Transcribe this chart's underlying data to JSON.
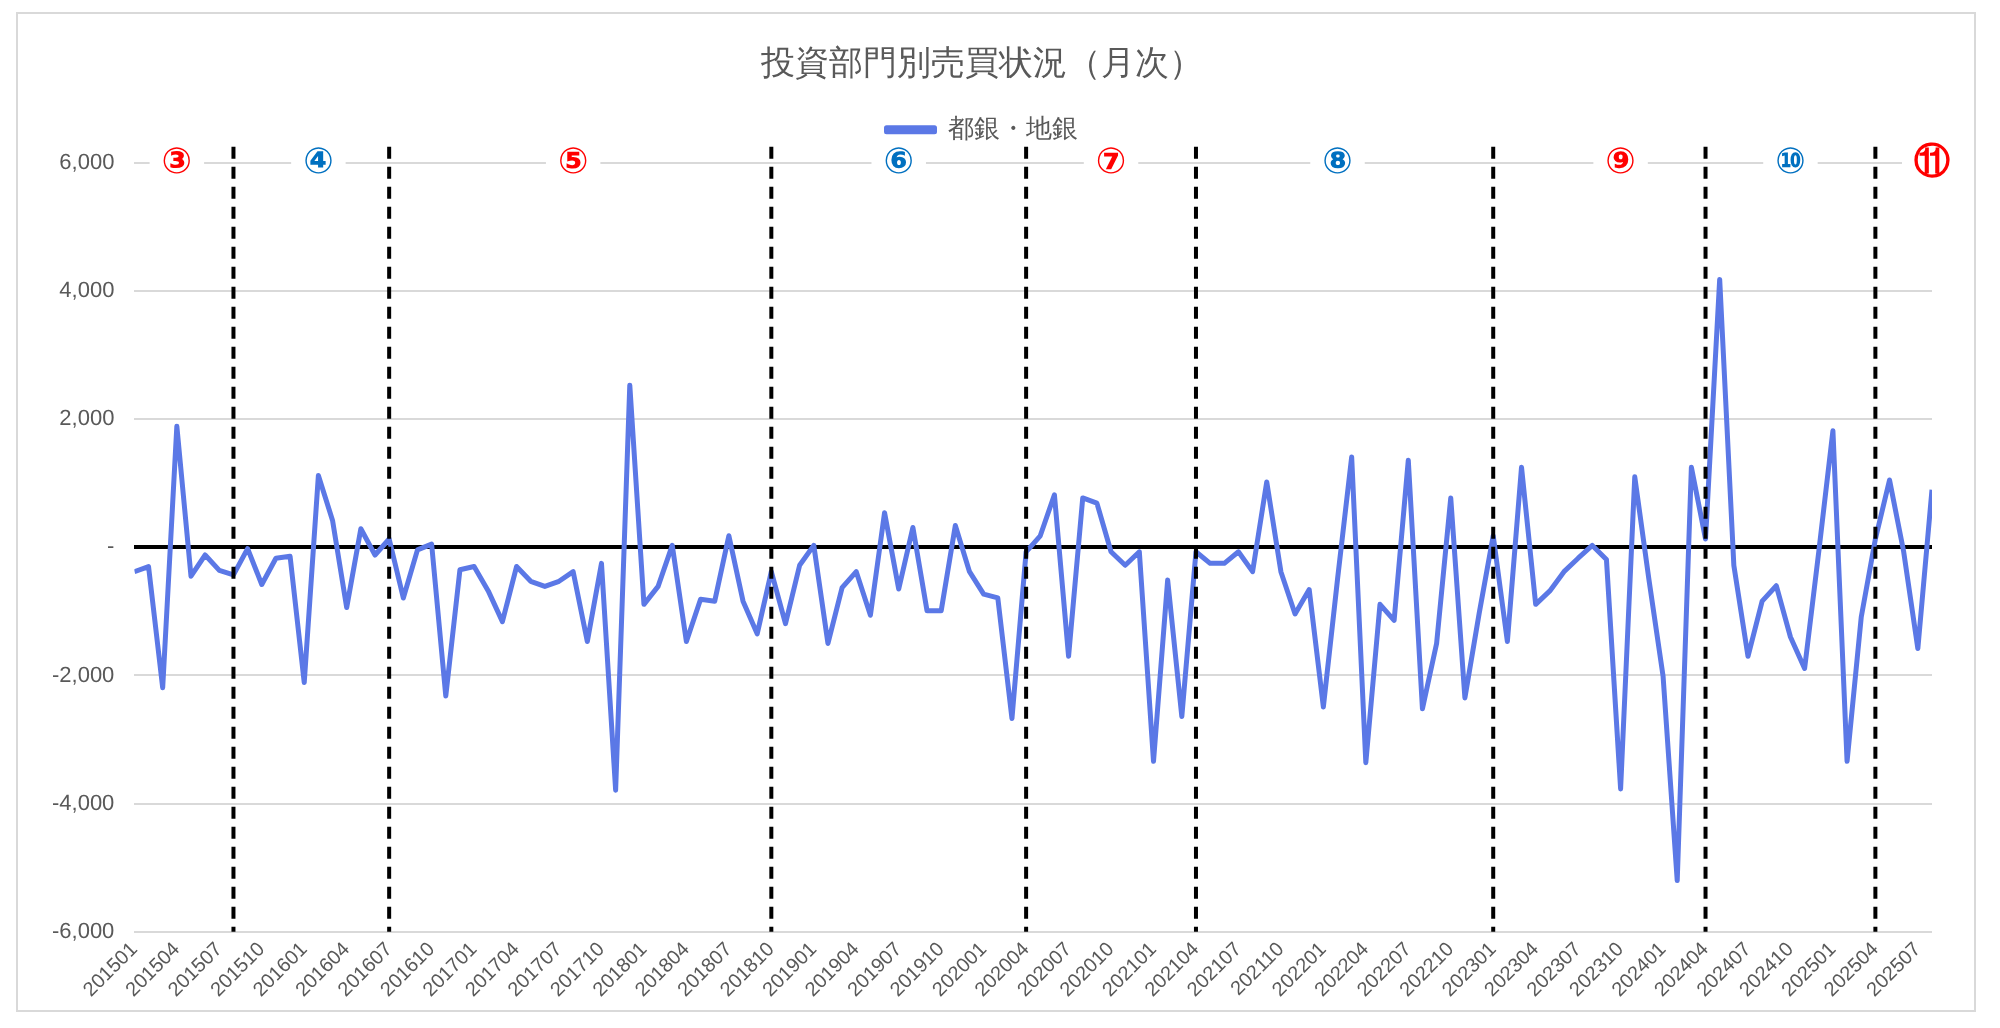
{
  "chart_data": {
    "type": "line",
    "title": "投資部門別売買状況（月次）",
    "legend": "top",
    "grid": "y",
    "line_style": "solid",
    "marker": "none",
    "x": [
      "2015-01",
      "2015-02",
      "2015-03",
      "2015-04",
      "2015-05",
      "2015-06",
      "2015-07",
      "2015-08",
      "2015-09",
      "2015-10",
      "2015-11",
      "2015-12",
      "2016-01",
      "2016-02",
      "2016-03",
      "2016-04",
      "2016-05",
      "2016-06",
      "2016-07",
      "2016-08",
      "2016-09",
      "2016-10",
      "2016-11",
      "2016-12",
      "2017-01",
      "2017-02",
      "2017-03",
      "2017-04",
      "2017-05",
      "2017-06",
      "2017-07",
      "2017-08",
      "2017-09",
      "2017-10",
      "2017-11",
      "2017-12",
      "2018-01",
      "2018-02",
      "2018-03",
      "2018-04",
      "2018-05",
      "2018-06",
      "2018-07",
      "2018-08",
      "2018-09",
      "2018-10",
      "2018-11",
      "2018-12",
      "2019-01",
      "2019-02",
      "2019-03",
      "2019-04",
      "2019-05",
      "2019-06",
      "2019-07",
      "2019-08",
      "2019-09",
      "2019-10",
      "2019-11",
      "2019-12",
      "2020-01",
      "2020-02",
      "2020-03",
      "2020-04",
      "2020-05",
      "2020-06",
      "2020-07",
      "2020-08",
      "2020-09",
      "2020-10",
      "2020-11",
      "2020-12",
      "2021-01",
      "2021-02",
      "2021-03",
      "2021-04",
      "2021-05",
      "2021-06",
      "2021-07",
      "2021-08",
      "2021-09",
      "2021-10",
      "2021-11",
      "2021-12",
      "2022-01",
      "2022-02",
      "2022-03",
      "2022-04",
      "2022-05",
      "2022-06",
      "2022-07",
      "2022-08",
      "2022-09",
      "2022-10",
      "2022-11",
      "2022-12",
      "2023-01",
      "2023-02",
      "2023-03",
      "2023-04",
      "2023-05",
      "2023-06",
      "2023-07",
      "2023-08",
      "2023-09",
      "2023-10",
      "2023-11",
      "2023-12",
      "2024-01",
      "2024-02",
      "2024-03",
      "2024-04",
      "2024-05",
      "2024-06",
      "2024-07",
      "2024-08",
      "2024-09",
      "2024-10",
      "2024-11",
      "2024-12",
      "2025-01",
      "2025-02",
      "2025-03",
      "2025-04",
      "2025-05",
      "2025-06",
      "2025-07",
      "2025-08"
    ],
    "series": [
      {
        "name": "都銀・地銀",
        "color": "#5b78e6",
        "values": [
          -380,
          -300,
          -2190,
          1890,
          -450,
          -120,
          -360,
          -430,
          -20,
          -580,
          -170,
          -140,
          -2110,
          1120,
          420,
          -940,
          290,
          -120,
          130,
          -790,
          -40,
          50,
          -2320,
          -350,
          -300,
          -680,
          -1160,
          -300,
          -530,
          -610,
          -530,
          -380,
          -1470,
          -250,
          -3790,
          2530,
          -890,
          -610,
          30,
          -1470,
          -810,
          -840,
          180,
          -840,
          -1350,
          -380,
          -1190,
          -280,
          30,
          -1500,
          -630,
          -380,
          -1060,
          540,
          -650,
          310,
          -990,
          -990,
          340,
          -380,
          -730,
          -790,
          -2670,
          -70,
          180,
          820,
          -1700,
          770,
          690,
          -70,
          -280,
          -70,
          -3340,
          -510,
          -2640,
          -70,
          -250,
          -250,
          -70,
          -380,
          1020,
          -380,
          -1040,
          -660,
          -2490,
          -500,
          1410,
          -3360,
          -890,
          -1140,
          1360,
          -2520,
          -1500,
          770,
          -2350,
          -1040,
          180,
          -1470,
          1250,
          -890,
          -680,
          -380,
          -170,
          30,
          -190,
          -3770,
          1100,
          -500,
          -2010,
          -5200,
          1250,
          130,
          4180,
          -280,
          -1700,
          -840,
          -600,
          -1400,
          -1890,
          -70,
          1820,
          -3340,
          -1090,
          130,
          1050,
          -70,
          -1580,
          900
        ]
      }
    ],
    "xlim": [
      "2015-01",
      "2025-08"
    ],
    "xticks": [
      {
        "value": "2015-01",
        "label": "201501"
      },
      {
        "value": "2015-04",
        "label": "201504"
      },
      {
        "value": "2015-07",
        "label": "201507"
      },
      {
        "value": "2015-10",
        "label": "201510"
      },
      {
        "value": "2016-01",
        "label": "201601"
      },
      {
        "value": "2016-04",
        "label": "201604"
      },
      {
        "value": "2016-07",
        "label": "201607"
      },
      {
        "value": "2016-10",
        "label": "201610"
      },
      {
        "value": "2017-01",
        "label": "201701"
      },
      {
        "value": "2017-04",
        "label": "201704"
      },
      {
        "value": "2017-07",
        "label": "201707"
      },
      {
        "value": "2017-10",
        "label": "201710"
      },
      {
        "value": "2018-01",
        "label": "201801"
      },
      {
        "value": "2018-04",
        "label": "201804"
      },
      {
        "value": "2018-07",
        "label": "201807"
      },
      {
        "value": "2018-10",
        "label": "201810"
      },
      {
        "value": "2019-01",
        "label": "201901"
      },
      {
        "value": "2019-04",
        "label": "201904"
      },
      {
        "value": "2019-07",
        "label": "201907"
      },
      {
        "value": "2019-10",
        "label": "201910"
      },
      {
        "value": "2020-01",
        "label": "202001"
      },
      {
        "value": "2020-04",
        "label": "202004"
      },
      {
        "value": "2020-07",
        "label": "202007"
      },
      {
        "value": "2020-10",
        "label": "202010"
      },
      {
        "value": "2021-01",
        "label": "202101"
      },
      {
        "value": "2021-04",
        "label": "202104"
      },
      {
        "value": "2021-07",
        "label": "202107"
      },
      {
        "value": "2021-10",
        "label": "202110"
      },
      {
        "value": "2022-01",
        "label": "202201"
      },
      {
        "value": "2022-04",
        "label": "202204"
      },
      {
        "value": "2022-07",
        "label": "202207"
      },
      {
        "value": "2022-10",
        "label": "202210"
      },
      {
        "value": "2023-01",
        "label": "202301"
      },
      {
        "value": "2023-04",
        "label": "202304"
      },
      {
        "value": "2023-07",
        "label": "202307"
      },
      {
        "value": "2023-10",
        "label": "202310"
      },
      {
        "value": "2024-01",
        "label": "202401"
      },
      {
        "value": "2024-04",
        "label": "202404"
      },
      {
        "value": "2024-07",
        "label": "202407"
      },
      {
        "value": "2024-10",
        "label": "202410"
      },
      {
        "value": "2025-01",
        "label": "202501"
      },
      {
        "value": "2025-04",
        "label": "202504"
      },
      {
        "value": "2025-07",
        "label": "202507"
      }
    ],
    "ylim": [
      -6000,
      6000
    ],
    "yticks": [
      {
        "value": -6000,
        "label": "-6,000"
      },
      {
        "value": -4000,
        "label": "-4,000"
      },
      {
        "value": -2000,
        "label": "-2,000"
      },
      {
        "value": 0,
        "label": "-"
      },
      {
        "value": 2000,
        "label": "2,000"
      },
      {
        "value": 4000,
        "label": "4,000"
      },
      {
        "value": 6000,
        "label": "6,000"
      }
    ],
    "ref_lines": [
      {
        "axis": "x",
        "value": "2015-08",
        "color": "#000000",
        "line_style": "dashed"
      },
      {
        "axis": "x",
        "value": "2016-07",
        "color": "#000000",
        "line_style": "dashed"
      },
      {
        "axis": "x",
        "value": "2018-10",
        "color": "#000000",
        "line_style": "dashed"
      },
      {
        "axis": "x",
        "value": "2020-04",
        "color": "#000000",
        "line_style": "dashed"
      },
      {
        "axis": "x",
        "value": "2021-04",
        "color": "#000000",
        "line_style": "dashed"
      },
      {
        "axis": "x",
        "value": "2023-01",
        "color": "#000000",
        "line_style": "dashed"
      },
      {
        "axis": "x",
        "value": "2024-04",
        "color": "#000000",
        "line_style": "dashed"
      },
      {
        "axis": "x",
        "value": "2025-04",
        "color": "#000000",
        "line_style": "dashed"
      }
    ],
    "annotations": [
      {
        "text": "③",
        "x": "2015-04",
        "y": 6000
      },
      {
        "text": "④",
        "x": "2016-02",
        "y": 6000
      },
      {
        "text": "⑤",
        "x": "2017-08",
        "y": 6000
      },
      {
        "text": "⑥",
        "x": "2019-07",
        "y": 6000
      },
      {
        "text": "⑦",
        "x": "2020-10",
        "y": 6000
      },
      {
        "text": "⑧",
        "x": "2022-02",
        "y": 6000
      },
      {
        "text": "⑨",
        "x": "2023-10",
        "y": 6000
      },
      {
        "text": "⑩",
        "x": "2024-10",
        "y": 6000
      },
      {
        "text": "⑪",
        "x": "2025-08",
        "y": 6000
      }
    ]
  }
}
